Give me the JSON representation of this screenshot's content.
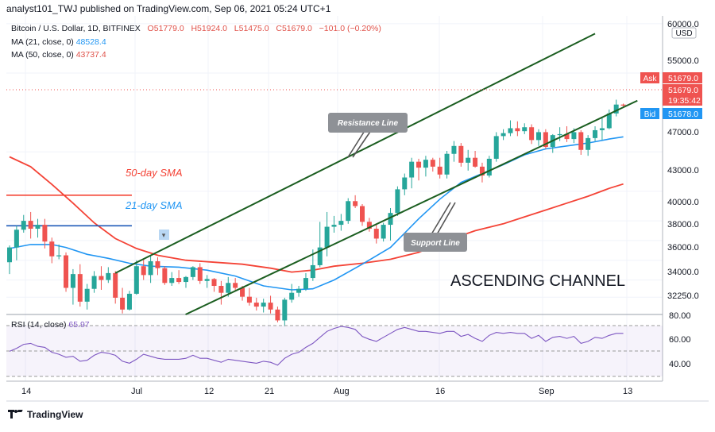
{
  "header": {
    "publish_line": "analyst101_TWJ published on TradingView.com, Sep 06, 2021 05:24 UTC+1",
    "symbol_line": "Bitcoin / U.S. Dollar, 1D, BITFINEX",
    "ohlc": {
      "O": "51779.0",
      "H": "51924.0",
      "L": "51475.0",
      "C": "51679.0",
      "change": "−101.0 (−0.20%)"
    },
    "ma21_label": "MA (21, close, 0)",
    "ma21_value": "48528.4",
    "ma50_label": "MA (50, close, 0)",
    "ma50_value": "43737.4"
  },
  "price_axis": {
    "currency": "USD",
    "ticks": [
      "60000.0",
      "55000.0",
      "51679.0",
      "47000.0",
      "43000.0",
      "40000.0",
      "38000.0",
      "36000.0",
      "34000.0",
      "32250.0"
    ],
    "ask_label": "Ask",
    "ask_value": "51679.0",
    "last_value": "51679.0",
    "countdown": "19:35:42",
    "bid_label": "Bid",
    "bid_value": "51678.0"
  },
  "rsi": {
    "label": "RSI (14, close)",
    "value": "65.97",
    "ticks": [
      "80.00",
      "60.00",
      "40.00"
    ]
  },
  "time_axis": {
    "labels": [
      "14",
      "Jul",
      "12",
      "21",
      "Aug",
      "16",
      "Sep",
      "13"
    ]
  },
  "annotations": {
    "sma50": "50-day SMA",
    "sma21": "21-day SMA",
    "resistance": "Resistance Line",
    "support": "Support Line",
    "channel": "ASCENDING CHANNEL"
  },
  "footer": {
    "brand": "TradingView"
  },
  "colors": {
    "up": "#26a69a",
    "down": "#ef5350",
    "ma21": "#2196f3",
    "ma50": "#f44336",
    "channel": "#1b5e20"
  },
  "chart_data": {
    "type": "candlestick",
    "symbol": "Bitcoin / U.S. Dollar",
    "interval": "1D",
    "y_range": [
      30500,
      60800
    ],
    "rsi_range": [
      18,
      85
    ],
    "candles": [
      {
        "o": 35800,
        "h": 37500,
        "l": 34600,
        "c": 37300
      },
      {
        "o": 37300,
        "h": 39500,
        "l": 36000,
        "c": 39100
      },
      {
        "o": 39100,
        "h": 40600,
        "l": 38800,
        "c": 40000
      },
      {
        "o": 40000,
        "h": 40900,
        "l": 38200,
        "c": 39200
      },
      {
        "o": 39200,
        "h": 40200,
        "l": 38300,
        "c": 39600
      },
      {
        "o": 39600,
        "h": 40200,
        "l": 37200,
        "c": 37900
      },
      {
        "o": 37900,
        "h": 38300,
        "l": 35700,
        "c": 36400
      },
      {
        "o": 36400,
        "h": 37600,
        "l": 36100,
        "c": 36500
      },
      {
        "o": 36500,
        "h": 36800,
        "l": 32800,
        "c": 33200
      },
      {
        "o": 33200,
        "h": 35100,
        "l": 31500,
        "c": 34600
      },
      {
        "o": 34600,
        "h": 35600,
        "l": 31300,
        "c": 31800
      },
      {
        "o": 31800,
        "h": 33600,
        "l": 31000,
        "c": 33100
      },
      {
        "o": 33100,
        "h": 34900,
        "l": 32700,
        "c": 34400
      },
      {
        "o": 34400,
        "h": 35400,
        "l": 33000,
        "c": 34000
      },
      {
        "o": 34000,
        "h": 35300,
        "l": 33700,
        "c": 34700
      },
      {
        "o": 34700,
        "h": 34900,
        "l": 31600,
        "c": 32200
      },
      {
        "o": 32200,
        "h": 33200,
        "l": 30600,
        "c": 31000
      },
      {
        "o": 31000,
        "h": 32900,
        "l": 30900,
        "c": 32600
      },
      {
        "o": 32600,
        "h": 36000,
        "l": 32500,
        "c": 35400
      },
      {
        "o": 35400,
        "h": 36100,
        "l": 34000,
        "c": 34500
      },
      {
        "o": 34500,
        "h": 36500,
        "l": 33700,
        "c": 35900
      },
      {
        "o": 35900,
        "h": 36300,
        "l": 34500,
        "c": 35200
      },
      {
        "o": 35200,
        "h": 35400,
        "l": 33500,
        "c": 33700
      },
      {
        "o": 33700,
        "h": 34800,
        "l": 33400,
        "c": 34200
      },
      {
        "o": 34200,
        "h": 35000,
        "l": 33600,
        "c": 33800
      },
      {
        "o": 33800,
        "h": 34400,
        "l": 33200,
        "c": 34300
      },
      {
        "o": 34300,
        "h": 35400,
        "l": 34000,
        "c": 35300
      },
      {
        "o": 35300,
        "h": 35700,
        "l": 33600,
        "c": 33900
      },
      {
        "o": 33900,
        "h": 34500,
        "l": 33200,
        "c": 34100
      },
      {
        "o": 34100,
        "h": 34200,
        "l": 32800,
        "c": 33400
      },
      {
        "o": 33400,
        "h": 33900,
        "l": 31500,
        "c": 32700
      },
      {
        "o": 32700,
        "h": 34300,
        "l": 32300,
        "c": 33700
      },
      {
        "o": 33700,
        "h": 34200,
        "l": 32900,
        "c": 33200
      },
      {
        "o": 33200,
        "h": 33400,
        "l": 31900,
        "c": 32300
      },
      {
        "o": 32300,
        "h": 33200,
        "l": 31400,
        "c": 31700
      },
      {
        "o": 31700,
        "h": 32200,
        "l": 30900,
        "c": 31300
      },
      {
        "o": 31300,
        "h": 32100,
        "l": 30700,
        "c": 31700
      },
      {
        "o": 31700,
        "h": 32400,
        "l": 30600,
        "c": 31000
      },
      {
        "o": 31000,
        "h": 31300,
        "l": 29700,
        "c": 29900
      },
      {
        "o": 29900,
        "h": 32200,
        "l": 29300,
        "c": 32000
      },
      {
        "o": 32000,
        "h": 33600,
        "l": 31700,
        "c": 32700
      },
      {
        "o": 32700,
        "h": 33400,
        "l": 32300,
        "c": 33100
      },
      {
        "o": 33100,
        "h": 34700,
        "l": 32900,
        "c": 34200
      },
      {
        "o": 34200,
        "h": 37100,
        "l": 33900,
        "c": 35500
      },
      {
        "o": 35500,
        "h": 39900,
        "l": 35300,
        "c": 37300
      },
      {
        "o": 37300,
        "h": 40900,
        "l": 36400,
        "c": 39400
      },
      {
        "o": 39400,
        "h": 40500,
        "l": 38800,
        "c": 39600
      },
      {
        "o": 39600,
        "h": 40700,
        "l": 39000,
        "c": 40000
      },
      {
        "o": 40000,
        "h": 42300,
        "l": 39700,
        "c": 42000
      },
      {
        "o": 42000,
        "h": 42600,
        "l": 41300,
        "c": 41500
      },
      {
        "o": 41500,
        "h": 41700,
        "l": 39500,
        "c": 39900
      },
      {
        "o": 39900,
        "h": 40300,
        "l": 38900,
        "c": 39200
      },
      {
        "o": 39200,
        "h": 39700,
        "l": 37700,
        "c": 38200
      },
      {
        "o": 38200,
        "h": 39800,
        "l": 37900,
        "c": 39600
      },
      {
        "o": 39600,
        "h": 41300,
        "l": 38000,
        "c": 40800
      },
      {
        "o": 40800,
        "h": 43500,
        "l": 40500,
        "c": 43200
      },
      {
        "o": 43200,
        "h": 44800,
        "l": 42600,
        "c": 44400
      },
      {
        "o": 44400,
        "h": 46400,
        "l": 43300,
        "c": 46000
      },
      {
        "o": 46000,
        "h": 46300,
        "l": 44100,
        "c": 45400
      },
      {
        "o": 45400,
        "h": 46600,
        "l": 44500,
        "c": 46200
      },
      {
        "o": 46200,
        "h": 46400,
        "l": 45000,
        "c": 45500
      },
      {
        "o": 45500,
        "h": 46400,
        "l": 44300,
        "c": 44700
      },
      {
        "o": 44700,
        "h": 47100,
        "l": 44300,
        "c": 46800
      },
      {
        "o": 46800,
        "h": 48100,
        "l": 46000,
        "c": 47600
      },
      {
        "o": 47600,
        "h": 47900,
        "l": 45500,
        "c": 45900
      },
      {
        "o": 45900,
        "h": 47200,
        "l": 45100,
        "c": 46400
      },
      {
        "o": 46400,
        "h": 47100,
        "l": 45400,
        "c": 45500
      },
      {
        "o": 45500,
        "h": 45900,
        "l": 43900,
        "c": 44600
      },
      {
        "o": 44600,
        "h": 46600,
        "l": 44400,
        "c": 46300
      },
      {
        "o": 46300,
        "h": 49000,
        "l": 46000,
        "c": 48600
      },
      {
        "o": 48600,
        "h": 49300,
        "l": 48200,
        "c": 48900
      },
      {
        "o": 48900,
        "h": 50200,
        "l": 48600,
        "c": 49400
      },
      {
        "o": 49400,
        "h": 50100,
        "l": 48600,
        "c": 49100
      },
      {
        "o": 49100,
        "h": 49900,
        "l": 48800,
        "c": 49500
      },
      {
        "o": 49500,
        "h": 49800,
        "l": 47800,
        "c": 48200
      },
      {
        "o": 48200,
        "h": 49300,
        "l": 47600,
        "c": 49000
      },
      {
        "o": 49000,
        "h": 49300,
        "l": 47300,
        "c": 47500
      },
      {
        "o": 47500,
        "h": 48800,
        "l": 46900,
        "c": 48700
      },
      {
        "o": 48700,
        "h": 49500,
        "l": 48100,
        "c": 48800
      },
      {
        "o": 48800,
        "h": 49600,
        "l": 48000,
        "c": 48300
      },
      {
        "o": 48300,
        "h": 49400,
        "l": 47900,
        "c": 49000
      },
      {
        "o": 49000,
        "h": 49200,
        "l": 46700,
        "c": 47200
      },
      {
        "o": 47200,
        "h": 48700,
        "l": 46600,
        "c": 48400
      },
      {
        "o": 48400,
        "h": 49600,
        "l": 48100,
        "c": 49200
      },
      {
        "o": 49200,
        "h": 50500,
        "l": 48200,
        "c": 49400
      },
      {
        "o": 49400,
        "h": 51300,
        "l": 49300,
        "c": 50900
      },
      {
        "o": 50900,
        "h": 52300,
        "l": 50600,
        "c": 51800
      },
      {
        "o": 51800,
        "h": 51900,
        "l": 51500,
        "c": 51700
      }
    ],
    "ma21": [
      [
        0,
        37200
      ],
      [
        3,
        37600
      ],
      [
        6,
        37600
      ],
      [
        8,
        37300
      ],
      [
        11,
        36600
      ],
      [
        14,
        36200
      ],
      [
        17,
        35700
      ],
      [
        20,
        35400
      ],
      [
        24,
        35300
      ],
      [
        28,
        35000
      ],
      [
        32,
        34400
      ],
      [
        36,
        33400
      ],
      [
        40,
        33000
      ],
      [
        43,
        33100
      ],
      [
        46,
        34000
      ],
      [
        50,
        35600
      ],
      [
        54,
        37300
      ],
      [
        58,
        40200
      ],
      [
        61,
        42200
      ],
      [
        64,
        43900
      ],
      [
        67,
        44800
      ],
      [
        70,
        45700
      ],
      [
        73,
        46700
      ],
      [
        76,
        47300
      ],
      [
        79,
        47600
      ],
      [
        82,
        47900
      ],
      [
        85,
        48300
      ],
      [
        87,
        48528
      ]
    ],
    "ma50": [
      [
        0,
        46500
      ],
      [
        3,
        45500
      ],
      [
        6,
        43700
      ],
      [
        9,
        41800
      ],
      [
        12,
        39800
      ],
      [
        15,
        38200
      ],
      [
        18,
        37200
      ],
      [
        21,
        36500
      ],
      [
        25,
        36000
      ],
      [
        29,
        35800
      ],
      [
        33,
        35600
      ],
      [
        37,
        35200
      ],
      [
        40,
        34800
      ],
      [
        43,
        35000
      ],
      [
        46,
        35400
      ],
      [
        50,
        35700
      ],
      [
        54,
        36100
      ],
      [
        58,
        36800
      ],
      [
        62,
        38000
      ],
      [
        66,
        39000
      ],
      [
        70,
        39700
      ],
      [
        73,
        40400
      ],
      [
        76,
        41100
      ],
      [
        79,
        41800
      ],
      [
        82,
        42500
      ],
      [
        85,
        43300
      ],
      [
        87,
        43737
      ]
    ],
    "old_levels": [
      {
        "name": "50-day SMA",
        "price": 42600,
        "from": 0,
        "to": 17
      },
      {
        "name": "21-day SMA",
        "price": 39500,
        "from": 0,
        "to": 17
      }
    ],
    "channel_lines": [
      {
        "name": "upper",
        "p1": [
          15,
          34700
        ],
        "p2": [
          83,
          59000
        ]
      },
      {
        "name": "lower",
        "p1": [
          22,
          29500
        ],
        "p2": [
          89,
          52200
        ]
      }
    ],
    "rsi_values": [
      48,
      51,
      55,
      56,
      53,
      52,
      47,
      45,
      42,
      43,
      38,
      39,
      44,
      47,
      46,
      44,
      38,
      36,
      40,
      45,
      43,
      41,
      40,
      40,
      40,
      41,
      44,
      41,
      41,
      39,
      37,
      40,
      39,
      38,
      37,
      36,
      38,
      37,
      34,
      41,
      45,
      47,
      52,
      56,
      62,
      68,
      71,
      73,
      72,
      70,
      63,
      60,
      58,
      62,
      66,
      70,
      72,
      70,
      68,
      68,
      67,
      66,
      68,
      68,
      63,
      65,
      61,
      58,
      64,
      67,
      66,
      67,
      66,
      66,
      61,
      64,
      58,
      62,
      63,
      61,
      63,
      56,
      58,
      62,
      61,
      64,
      66,
      66
    ]
  }
}
